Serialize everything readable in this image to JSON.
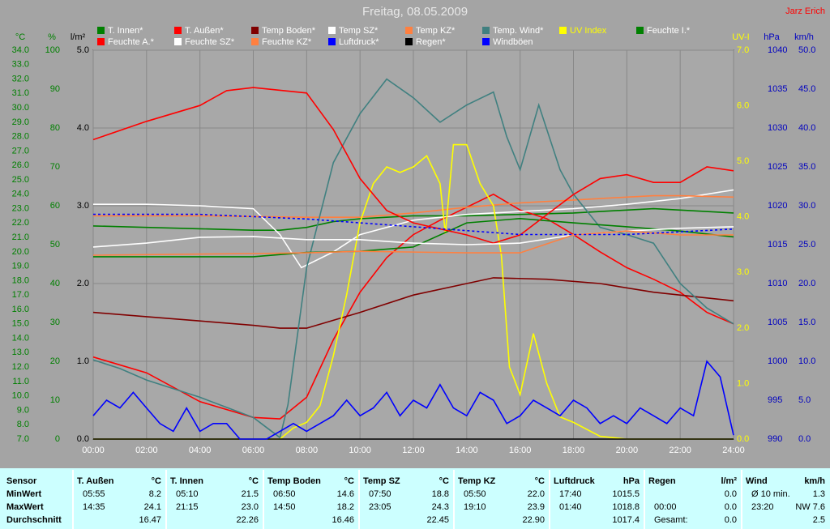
{
  "chart_data": {
    "type": "line",
    "title": "Freitag, 08.05.2009",
    "author": "Jarz Erich",
    "xlim": [
      0,
      24
    ],
    "xticks": [
      {
        "value": 0,
        "label": "00:00"
      },
      {
        "value": 2,
        "label": "02:00"
      },
      {
        "value": 4,
        "label": "04:00"
      },
      {
        "value": 6,
        "label": "06:00"
      },
      {
        "value": 8,
        "label": "08:00"
      },
      {
        "value": 10,
        "label": "10:00"
      },
      {
        "value": 12,
        "label": "12:00"
      },
      {
        "value": 14,
        "label": "14:00"
      },
      {
        "value": 16,
        "label": "16:00"
      },
      {
        "value": 18,
        "label": "18:00"
      },
      {
        "value": 20,
        "label": "20:00"
      },
      {
        "value": 22,
        "label": "22:00"
      },
      {
        "value": 24,
        "label": "24:00"
      }
    ],
    "grid": true,
    "axes": [
      {
        "label": "°C",
        "color": "#008000",
        "lim": [
          7,
          34
        ],
        "ticks": [
          {
            "value": 7,
            "label": "7.0"
          },
          {
            "value": 8,
            "label": "8.0"
          },
          {
            "value": 9,
            "label": "9.0"
          },
          {
            "value": 10,
            "label": "10.0"
          },
          {
            "value": 11,
            "label": "11.0"
          },
          {
            "value": 12,
            "label": "12.0"
          },
          {
            "value": 13,
            "label": "13.0"
          },
          {
            "value": 14,
            "label": "14.0"
          },
          {
            "value": 15,
            "label": "15.0"
          },
          {
            "value": 16,
            "label": "16.0"
          },
          {
            "value": 17,
            "label": "17.0"
          },
          {
            "value": 18,
            "label": "18.0"
          },
          {
            "value": 19,
            "label": "19.0"
          },
          {
            "value": 20,
            "label": "20.0"
          },
          {
            "value": 21,
            "label": "21.0"
          },
          {
            "value": 22,
            "label": "22.0"
          },
          {
            "value": 23,
            "label": "23.0"
          },
          {
            "value": 24,
            "label": "24.0"
          },
          {
            "value": 25,
            "label": "25.0"
          },
          {
            "value": 26,
            "label": "26.0"
          },
          {
            "value": 27,
            "label": "27.0"
          },
          {
            "value": 28,
            "label": "28.0"
          },
          {
            "value": 29,
            "label": "29.0"
          },
          {
            "value": 30,
            "label": "30.0"
          },
          {
            "value": 31,
            "label": "31.0"
          },
          {
            "value": 32,
            "label": "32.0"
          },
          {
            "value": 33,
            "label": "33.0"
          },
          {
            "value": 34,
            "label": "34.0"
          }
        ]
      },
      {
        "label": "%",
        "color": "#008000",
        "lim": [
          0,
          100
        ],
        "ticks": [
          0,
          10,
          20,
          30,
          40,
          50,
          60,
          70,
          80,
          90,
          100
        ]
      },
      {
        "label": "l/m²",
        "color": "#000000",
        "lim": [
          0,
          5
        ],
        "ticks": [
          {
            "value": 0,
            "label": "0.0"
          },
          {
            "value": 1,
            "label": "1.0"
          },
          {
            "value": 2,
            "label": "2.0"
          },
          {
            "value": 3,
            "label": "3.0"
          },
          {
            "value": 4,
            "label": "4.0"
          },
          {
            "value": 5,
            "label": "5.0"
          }
        ]
      },
      {
        "label": "UV-I",
        "color": "#ffff00",
        "lim": [
          0,
          7
        ],
        "ticks": [
          {
            "value": 0,
            "label": "0.0"
          },
          {
            "value": 1,
            "label": "1.0"
          },
          {
            "value": 2,
            "label": "2.0"
          },
          {
            "value": 3,
            "label": "3.0"
          },
          {
            "value": 4,
            "label": "4.0"
          },
          {
            "value": 5,
            "label": "5.0"
          },
          {
            "value": 6,
            "label": "6.0"
          },
          {
            "value": 7,
            "label": "7.0"
          }
        ]
      },
      {
        "label": "hPa",
        "color": "#0000c0",
        "lim": [
          990,
          1040
        ],
        "ticks": [
          990,
          995,
          1000,
          1005,
          1010,
          1015,
          1020,
          1025,
          1030,
          1035,
          1040
        ]
      },
      {
        "label": "km/h",
        "color": "#0000c0",
        "lim": [
          0,
          50
        ],
        "ticks": [
          {
            "value": 0,
            "label": "0.0"
          },
          {
            "value": 5,
            "label": "5.0"
          },
          {
            "value": 10,
            "label": "10.0"
          },
          {
            "value": 15,
            "label": "15.0"
          },
          {
            "value": 20,
            "label": "20.0"
          },
          {
            "value": 25,
            "label": "25.0"
          },
          {
            "value": 30,
            "label": "30.0"
          },
          {
            "value": 35,
            "label": "35.0"
          },
          {
            "value": 40,
            "label": "40.0"
          },
          {
            "value": 45,
            "label": "45.0"
          },
          {
            "value": 50,
            "label": "50.0"
          }
        ]
      }
    ],
    "series": [
      {
        "name": "T. Innen*",
        "color": "#008000",
        "axis": 0,
        "x": [
          0,
          2,
          4,
          6,
          7,
          8,
          9,
          10,
          11,
          12,
          14,
          16,
          18,
          20,
          21,
          22,
          24
        ],
        "values": [
          21.8,
          21.7,
          21.6,
          21.5,
          21.5,
          21.7,
          22.1,
          22.3,
          22.4,
          22.5,
          22.5,
          22.6,
          22.7,
          22.9,
          23.0,
          22.9,
          22.7
        ]
      },
      {
        "name": "T. Außen*",
        "color": "#ff0000",
        "axis": 0,
        "x": [
          0,
          2,
          4,
          6,
          7,
          8,
          9,
          10,
          11,
          12,
          13,
          14,
          15,
          16,
          17,
          18,
          19,
          20,
          21,
          22,
          23,
          24
        ],
        "values": [
          12.7,
          11.6,
          9.6,
          8.5,
          8.4,
          9.9,
          13.9,
          17.2,
          19.6,
          21.2,
          22.2,
          23.1,
          24.0,
          22.9,
          22.3,
          21.2,
          20.0,
          18.9,
          18.1,
          17.2,
          15.8,
          15.0
        ]
      },
      {
        "name": "Temp Boden*",
        "color": "#800000",
        "axis": 0,
        "x": [
          0,
          2,
          4,
          6,
          7,
          8,
          10,
          12,
          14,
          15,
          17,
          19,
          21,
          23,
          24
        ],
        "values": [
          15.8,
          15.5,
          15.2,
          14.9,
          14.7,
          14.7,
          15.8,
          17.0,
          17.8,
          18.2,
          18.1,
          17.8,
          17.2,
          16.8,
          16.6
        ]
      },
      {
        "name": "Temp SZ*",
        "color": "#ffffff",
        "axis": 0,
        "x": [
          0,
          2,
          4,
          6,
          7,
          7.8,
          9,
          10,
          12,
          14,
          16,
          18,
          20,
          22,
          24
        ],
        "values": [
          23.3,
          23.3,
          23.2,
          23.0,
          21.2,
          18.9,
          20.0,
          21.2,
          22.2,
          22.6,
          22.8,
          23.0,
          23.3,
          23.7,
          24.3
        ]
      },
      {
        "name": "Temp KZ*",
        "color": "#ff8040",
        "axis": 0,
        "x": [
          0,
          4,
          8,
          10,
          12,
          14,
          16,
          18,
          20,
          21,
          22,
          24
        ],
        "values": [
          22.5,
          22.5,
          22.4,
          22.4,
          22.7,
          23.1,
          23.4,
          23.6,
          23.8,
          23.9,
          23.9,
          23.8
        ]
      },
      {
        "name": "Temp. Wind*",
        "color": "#408080",
        "axis": 0,
        "x": [
          0,
          1,
          2,
          3,
          4,
          5,
          6,
          7,
          7.3,
          8,
          9,
          10,
          11,
          12,
          13,
          14,
          15,
          15.5,
          16,
          16.7,
          17.5,
          18,
          19,
          20,
          21,
          22,
          23,
          24
        ],
        "values": [
          12.5,
          11.9,
          11.1,
          10.5,
          9.9,
          9.2,
          8.5,
          7.1,
          9.4,
          18.9,
          26.2,
          29.6,
          32.0,
          30.7,
          29.0,
          30.2,
          31.1,
          28.0,
          25.7,
          30.2,
          25.7,
          24.0,
          21.7,
          21.2,
          20.6,
          17.8,
          16.1,
          15.0
        ]
      },
      {
        "name": "UV Index",
        "color": "#ffff00",
        "axis": 3,
        "x": [
          0,
          7,
          7.5,
          8,
          8.5,
          9,
          9.5,
          10,
          10.5,
          11,
          11.5,
          12,
          12.5,
          13,
          13.2,
          13.5,
          14,
          14.5,
          15,
          15.3,
          15.6,
          16,
          16.5,
          17,
          17.5,
          18,
          19,
          20,
          24
        ],
        "values": [
          0,
          0,
          0.2,
          0.3,
          0.6,
          1.5,
          2.6,
          3.9,
          4.6,
          4.9,
          4.8,
          4.9,
          5.1,
          4.6,
          3.7,
          5.3,
          5.3,
          4.6,
          4.2,
          3.3,
          1.3,
          0.8,
          1.9,
          1.0,
          0.4,
          0.3,
          0.05,
          0,
          0
        ]
      },
      {
        "name": "Feuchte I.*",
        "color": "#008000",
        "axis": 1,
        "x": [
          0,
          6,
          8,
          10,
          12,
          14,
          16,
          18,
          20,
          22,
          24
        ],
        "values": [
          46.9,
          46.9,
          48.0,
          48.3,
          49.4,
          55.6,
          56.7,
          55.6,
          54.6,
          53.5,
          52.0
        ]
      },
      {
        "name": "Feuchte A.*",
        "color": "#ff0000",
        "axis": 1,
        "x": [
          0,
          2,
          4,
          5,
          6,
          8,
          9,
          10,
          11,
          12,
          14,
          15,
          16,
          17,
          18,
          19,
          20,
          21,
          22,
          23,
          24
        ],
        "values": [
          77.0,
          81.7,
          85.8,
          89.6,
          90.4,
          89.0,
          79.6,
          67.0,
          58.8,
          55.6,
          52.5,
          50.4,
          52.5,
          57.7,
          62.9,
          67.0,
          68.0,
          66.0,
          66.0,
          70.0,
          69.0
        ]
      },
      {
        "name": "Feuchte SZ*",
        "color": "#ffffff",
        "axis": 1,
        "x": [
          0,
          2,
          4,
          6,
          8,
          10,
          12,
          14,
          16,
          18,
          20,
          22,
          24
        ],
        "values": [
          49.4,
          50.4,
          51.9,
          52.1,
          51.3,
          51.3,
          50.4,
          50.0,
          50.4,
          52.5,
          53.5,
          54.2,
          54.6
        ]
      },
      {
        "name": "Feuchte KZ*",
        "color": "#ff8040",
        "axis": 1,
        "x": [
          0,
          6,
          8,
          10,
          14,
          16,
          18,
          20,
          22,
          24
        ],
        "values": [
          47.3,
          47.7,
          47.9,
          48.3,
          47.9,
          47.9,
          52.5,
          53.5,
          52.5,
          52.5
        ]
      },
      {
        "name": "Luftdruck*",
        "color": "#0000ff",
        "axis": 4,
        "dashed": true,
        "x": [
          0,
          4,
          8,
          12,
          16,
          20,
          24
        ],
        "values": [
          1018.9,
          1018.9,
          1018.3,
          1017.3,
          1016.3,
          1016.3,
          1017.0
        ]
      },
      {
        "name": "Regen*",
        "color": "#000000",
        "axis": 2,
        "x": [
          0,
          24
        ],
        "values": [
          0,
          0
        ]
      },
      {
        "name": "Windböen",
        "color": "#0000ff",
        "axis": 5,
        "x": [
          0,
          0.5,
          1,
          1.5,
          2,
          2.5,
          3,
          3.5,
          4,
          4.5,
          5,
          5.5,
          6,
          6.5,
          7,
          7.5,
          8,
          8.5,
          9,
          9.5,
          10,
          10.5,
          11,
          11.5,
          12,
          12.5,
          13,
          13.5,
          14,
          14.5,
          15,
          15.5,
          16,
          16.5,
          17,
          17.5,
          18,
          18.5,
          19,
          19.5,
          20,
          20.5,
          21,
          21.5,
          22,
          22.5,
          23,
          23.5,
          24
        ],
        "values": [
          3,
          5,
          4,
          6,
          4,
          2,
          1,
          4,
          1,
          2,
          2,
          0,
          0,
          0,
          1,
          2,
          1,
          2,
          3,
          5,
          3,
          4,
          6,
          3,
          5,
          4,
          7,
          4,
          3,
          6,
          5,
          2,
          3,
          5,
          4,
          3,
          5,
          4,
          2,
          3,
          2,
          4,
          3,
          2,
          4,
          3,
          10,
          8,
          0.5
        ]
      }
    ]
  },
  "table": {
    "header": "Sensor",
    "row_labels": [
      "MinWert",
      "MaxWert",
      "Durchschnitt"
    ],
    "groups": [
      {
        "title": "T. Außen",
        "unit": "°C",
        "rows": [
          [
            "05:55",
            "8.2"
          ],
          [
            "14:35",
            "24.1"
          ],
          [
            null,
            "16.47"
          ]
        ]
      },
      {
        "title": "T. Innen",
        "unit": "°C",
        "rows": [
          [
            "05:10",
            "21.5"
          ],
          [
            "21:15",
            "23.0"
          ],
          [
            null,
            "22.26"
          ]
        ]
      },
      {
        "title": "Temp Boden",
        "unit": "°C",
        "rows": [
          [
            "06:50",
            "14.6"
          ],
          [
            "14:50",
            "18.2"
          ],
          [
            null,
            "16.46"
          ]
        ]
      },
      {
        "title": "Temp SZ",
        "unit": "°C",
        "rows": [
          [
            "07:50",
            "18.8"
          ],
          [
            "23:05",
            "24.3"
          ],
          [
            null,
            "22.45"
          ]
        ]
      },
      {
        "title": "Temp KZ",
        "unit": "°C",
        "rows": [
          [
            "05:50",
            "22.0"
          ],
          [
            "19:10",
            "23.9"
          ],
          [
            null,
            "22.90"
          ]
        ]
      },
      {
        "title": "Luftdruck",
        "unit": "hPa",
        "rows": [
          [
            "17:40",
            "1015.5"
          ],
          [
            "01:40",
            "1018.8"
          ],
          [
            null,
            "1017.4"
          ]
        ]
      },
      {
        "title": "Regen",
        "unit": "l/m²",
        "rows": [
          [
            null,
            "0.0"
          ],
          [
            "00:00",
            "0.0"
          ],
          [
            "Gesamt:",
            "0.0"
          ]
        ]
      },
      {
        "title": "Wind",
        "unit": "km/h",
        "rows": [
          [
            "Ø 10 min.",
            "1.3"
          ],
          [
            "23:20",
            "NW 7.6"
          ],
          [
            null,
            "2.5"
          ]
        ]
      }
    ]
  }
}
